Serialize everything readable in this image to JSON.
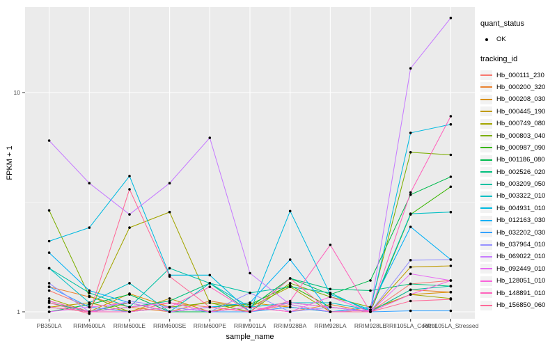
{
  "figure": {
    "background": "#FFFFFF",
    "panel_background": "#EBEBEB",
    "gridline_color": "#FFFFFF",
    "tick_color": "#333333",
    "tick_label_color": "#4D4D4D",
    "point_color": "#000000",
    "legend_key_background": "#F2F2F2"
  },
  "legend": {
    "quant_status_title": "quant_status",
    "quant_status_value": "OK",
    "tracking_id_title": "tracking_id"
  },
  "chart_data": {
    "type": "line",
    "title": "",
    "xlabel": "sample_name",
    "ylabel": "FPKM + 1",
    "y_scale": "log10",
    "y_ticks": [
      1,
      10
    ],
    "ylim": [
      0.95,
      24
    ],
    "grid": true,
    "legend_position": "right",
    "marker": "black-point",
    "categories": [
      "PB350LA",
      "RRIM600LA",
      "RRIM600LE",
      "RRIM600SE",
      "RRIM600PE",
      "RRIM901LA",
      "RRIM928BA",
      "RRIM928LA",
      "RRIM928LE",
      "RRII105LA_Control",
      "RRII105LA_Stressed"
    ],
    "series": [
      {
        "name": "Hb_000111_230",
        "color": "#F8766D",
        "values": [
          1.25,
          1.05,
          1.0,
          1.1,
          1.05,
          1.0,
          1.08,
          1.0,
          1.0,
          1.34,
          1.39
        ]
      },
      {
        "name": "Hb_000200_320",
        "color": "#EA8331",
        "values": [
          1.3,
          1.17,
          1.05,
          1.0,
          1.12,
          1.05,
          1.0,
          1.08,
          1.0,
          1.26,
          1.23
        ]
      },
      {
        "name": "Hb_000208_030",
        "color": "#D89000",
        "values": [
          1.12,
          1.0,
          1.21,
          1.05,
          1.0,
          1.1,
          1.05,
          1.0,
          1.02,
          1.2,
          1.23
        ]
      },
      {
        "name": "Hb_000445_190",
        "color": "#C09B00",
        "values": [
          1.05,
          1.1,
          1.0,
          1.15,
          1.0,
          1.0,
          1.1,
          1.05,
          1.0,
          1.6,
          1.62
        ]
      },
      {
        "name": "Hb_000749_080",
        "color": "#A3A500",
        "values": [
          1.15,
          1.0,
          2.42,
          2.85,
          1.1,
          1.05,
          1.3,
          1.0,
          1.02,
          1.2,
          1.15
        ]
      },
      {
        "name": "Hb_000803_040",
        "color": "#7CAE00",
        "values": [
          2.9,
          1.18,
          1.0,
          1.05,
          1.1,
          1.0,
          1.35,
          1.17,
          1.05,
          5.34,
          5.2
        ]
      },
      {
        "name": "Hb_000987_090",
        "color": "#39B600",
        "values": [
          1.05,
          1.0,
          1.1,
          1.0,
          1.05,
          1.08,
          1.32,
          1.05,
          1.0,
          2.78,
          3.72
        ]
      },
      {
        "name": "Hb_001186_080",
        "color": "#00BB4E",
        "values": [
          1.0,
          1.08,
          1.2,
          1.0,
          1.0,
          1.05,
          1.42,
          1.2,
          1.39,
          3.42,
          4.13
        ]
      },
      {
        "name": "Hb_002526_020",
        "color": "#00BF7D",
        "values": [
          1.1,
          1.0,
          1.05,
          1.12,
          1.35,
          1.0,
          1.42,
          1.27,
          1.25,
          1.34,
          1.31
        ]
      },
      {
        "name": "Hb_003209_050",
        "color": "#00C1A3",
        "values": [
          1.58,
          1.22,
          1.05,
          1.58,
          1.35,
          1.22,
          1.3,
          1.22,
          1.0,
          1.26,
          1.31
        ]
      },
      {
        "name": "Hb_003322_010",
        "color": "#00BFC4",
        "values": [
          1.58,
          1.1,
          1.35,
          1.0,
          1.35,
          1.05,
          1.1,
          1.1,
          1.02,
          2.8,
          2.85
        ]
      },
      {
        "name": "Hb_004931_010",
        "color": "#00BAE0",
        "values": [
          2.1,
          2.42,
          4.16,
          1.47,
          1.47,
          1.0,
          2.88,
          1.2,
          1.02,
          6.55,
          7.16
        ]
      },
      {
        "name": "Hb_012163_030",
        "color": "#00B0F6",
        "values": [
          1.86,
          1.25,
          1.1,
          1.0,
          1.05,
          1.1,
          1.73,
          1.0,
          1.05,
          2.44,
          1.73
        ]
      },
      {
        "name": "Hb_032202_030",
        "color": "#35A2FF",
        "values": [
          1.3,
          1.05,
          1.0,
          1.05,
          1.0,
          1.0,
          1.05,
          1.0,
          1.0,
          1.01,
          1.01
        ]
      },
      {
        "name": "Hb_037964_010",
        "color": "#9590FF",
        "values": [
          1.35,
          1.0,
          1.12,
          1.05,
          1.0,
          1.22,
          1.0,
          1.05,
          1.0,
          1.72,
          1.73
        ]
      },
      {
        "name": "Hb_069022_010",
        "color": "#C77CFF",
        "values": [
          6.04,
          3.86,
          2.78,
          3.86,
          6.22,
          1.5,
          1.08,
          1.0,
          1.02,
          12.9,
          21.9
        ]
      },
      {
        "name": "Hb_092449_010",
        "color": "#E76BF3",
        "values": [
          1.0,
          1.05,
          1.1,
          1.0,
          1.05,
          1.0,
          1.1,
          1.05,
          1.0,
          1.49,
          1.39
        ]
      },
      {
        "name": "Hb_128051_010",
        "color": "#FA62DB",
        "values": [
          1.12,
          1.0,
          1.05,
          1.1,
          1.0,
          1.05,
          1.0,
          1.17,
          1.0,
          1.2,
          1.39
        ]
      },
      {
        "name": "Hb_148891_010",
        "color": "#FF62BC",
        "values": [
          1.05,
          1.0,
          1.0,
          1.05,
          1.3,
          1.0,
          1.12,
          2.02,
          1.0,
          3.5,
          7.8
        ]
      },
      {
        "name": "Hb_156850_060",
        "color": "#FF6A98",
        "values": [
          1.1,
          0.98,
          3.62,
          1.45,
          1.05,
          1.0,
          1.42,
          1.0,
          1.0,
          1.12,
          1.14
        ]
      }
    ]
  }
}
